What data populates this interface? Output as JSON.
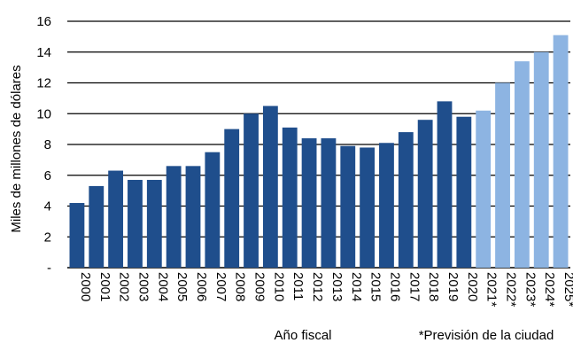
{
  "chart_data": {
    "type": "bar",
    "title": "",
    "xlabel": "Año fiscal",
    "ylabel": "Miles de millones de dólares",
    "footnote": "*Previsión de la ciudad",
    "ylim": [
      0,
      16
    ],
    "yticks": [
      0,
      2,
      4,
      6,
      8,
      10,
      12,
      14,
      16
    ],
    "ytick_labels": [
      "-",
      "2",
      "4",
      "6",
      "8",
      "10",
      "12",
      "14",
      "16"
    ],
    "grid": true,
    "legend": "none",
    "categories": [
      "2000",
      "2001",
      "2002",
      "2003",
      "2004",
      "2005",
      "2006",
      "2007",
      "2008",
      "2009",
      "2010",
      "2011",
      "2012",
      "2013",
      "2014",
      "2015",
      "2016",
      "2017",
      "2018",
      "2019",
      "2020",
      "2021*",
      "2022*",
      "2023*",
      "2024*",
      "2025*"
    ],
    "values": [
      4.2,
      5.3,
      6.3,
      5.7,
      5.7,
      6.6,
      6.6,
      7.5,
      9.0,
      10.0,
      10.5,
      9.1,
      8.4,
      8.4,
      7.9,
      7.8,
      8.1,
      8.8,
      9.6,
      10.8,
      9.8,
      10.2,
      12.0,
      13.4,
      14.0,
      15.1
    ],
    "forecast": [
      false,
      false,
      false,
      false,
      false,
      false,
      false,
      false,
      false,
      false,
      false,
      false,
      false,
      false,
      false,
      false,
      false,
      false,
      false,
      false,
      false,
      true,
      true,
      true,
      true,
      true
    ],
    "colors": {
      "actual": "#1f4e8c",
      "forecast": "#8db4e2"
    }
  }
}
